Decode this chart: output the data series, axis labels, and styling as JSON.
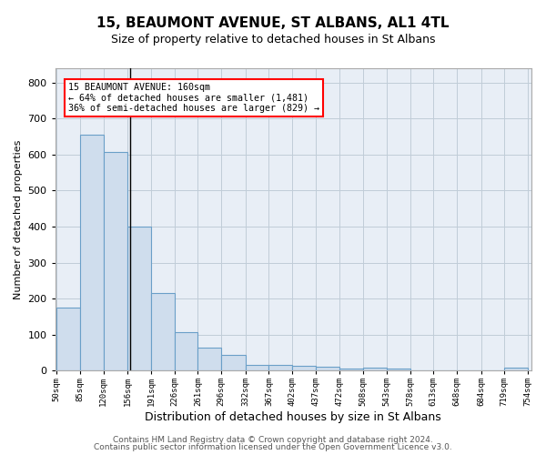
{
  "title": "15, BEAUMONT AVENUE, ST ALBANS, AL1 4TL",
  "subtitle": "Size of property relative to detached houses in St Albans",
  "xlabel": "Distribution of detached houses by size in St Albans",
  "ylabel": "Number of detached properties",
  "footer1": "Contains HM Land Registry data © Crown copyright and database right 2024.",
  "footer2": "Contains public sector information licensed under the Open Government Licence v3.0.",
  "bar_color": "#cfdded",
  "bar_edge_color": "#6a9fc8",
  "bg_color": "#e8eef6",
  "annotation_line1": "15 BEAUMONT AVENUE: 160sqm",
  "annotation_line2": "← 64% of detached houses are smaller (1,481)",
  "annotation_line3": "36% of semi-detached houses are larger (829) →",
  "annotation_box_color": "white",
  "annotation_edge_color": "red",
  "property_line_x": 160,
  "property_line_color": "black",
  "bin_edges": [
    50,
    85,
    120,
    156,
    191,
    226,
    261,
    296,
    332,
    367,
    402,
    437,
    472,
    508,
    543,
    578,
    613,
    648,
    684,
    719,
    754
  ],
  "bar_heights": [
    175,
    655,
    608,
    400,
    215,
    107,
    63,
    43,
    17,
    16,
    14,
    10,
    6,
    9,
    6,
    0,
    0,
    0,
    0,
    8
  ],
  "ylim": [
    0,
    840
  ],
  "yticks": [
    0,
    100,
    200,
    300,
    400,
    500,
    600,
    700,
    800
  ],
  "grid_color": "#c0ccd8",
  "title_fontsize": 11,
  "subtitle_fontsize": 9,
  "ylabel_fontsize": 8,
  "xlabel_fontsize": 9
}
